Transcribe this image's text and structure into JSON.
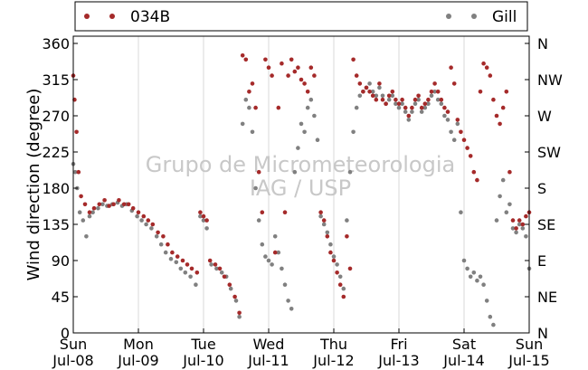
{
  "chart_data": {
    "type": "scatter",
    "title": "",
    "ylabel": "Wind direction (degree)",
    "xlabel": "",
    "ylim": [
      0,
      360
    ],
    "yticks": [
      0,
      45,
      90,
      135,
      180,
      225,
      270,
      315,
      360
    ],
    "right_ticks": [
      {
        "value": 0,
        "label": "N"
      },
      {
        "value": 45,
        "label": "NE"
      },
      {
        "value": 90,
        "label": "E"
      },
      {
        "value": 135,
        "label": "SE"
      },
      {
        "value": 180,
        "label": "S"
      },
      {
        "value": 225,
        "label": "SW"
      },
      {
        "value": 270,
        "label": "W"
      },
      {
        "value": 315,
        "label": "NW"
      },
      {
        "value": 360,
        "label": "N"
      }
    ],
    "xlim": [
      0,
      7
    ],
    "x_unit": "days since 2015-07-08 00:00",
    "xticks": [
      {
        "value": 0,
        "day": "Sun",
        "date": "Jul-08"
      },
      {
        "value": 1,
        "day": "Mon",
        "date": "Jul-09"
      },
      {
        "value": 2,
        "day": "Tue",
        "date": "Jul-10"
      },
      {
        "value": 3,
        "day": "Wed",
        "date": "Jul-11"
      },
      {
        "value": 4,
        "day": "Thu",
        "date": "Jul-12"
      },
      {
        "value": 5,
        "day": "Fri",
        "date": "Jul-13"
      },
      {
        "value": 6,
        "day": "Sat",
        "date": "Jul-14"
      },
      {
        "value": 7,
        "day": "Sun",
        "date": "Jul-15"
      }
    ],
    "grid": "vertical",
    "legend_position": "top-outside",
    "watermark": [
      "Grupo de Micrometeorologia",
      "IAG / USP"
    ],
    "series": [
      {
        "name": "034B",
        "color": "#a52a2a",
        "points": [
          [
            0.0,
            320
          ],
          [
            0.02,
            290
          ],
          [
            0.05,
            250
          ],
          [
            0.08,
            200
          ],
          [
            0.12,
            170
          ],
          [
            0.18,
            160
          ],
          [
            0.25,
            150
          ],
          [
            0.32,
            155
          ],
          [
            0.4,
            160
          ],
          [
            0.48,
            165
          ],
          [
            0.55,
            158
          ],
          [
            0.62,
            160
          ],
          [
            0.7,
            165
          ],
          [
            0.78,
            160
          ],
          [
            0.85,
            160
          ],
          [
            0.92,
            155
          ],
          [
            1.0,
            150
          ],
          [
            1.08,
            145
          ],
          [
            1.15,
            140
          ],
          [
            1.22,
            135
          ],
          [
            1.3,
            125
          ],
          [
            1.38,
            120
          ],
          [
            1.45,
            110
          ],
          [
            1.52,
            100
          ],
          [
            1.6,
            95
          ],
          [
            1.68,
            90
          ],
          [
            1.75,
            85
          ],
          [
            1.82,
            80
          ],
          [
            1.9,
            75
          ],
          [
            1.95,
            150
          ],
          [
            2.0,
            145
          ],
          [
            2.05,
            140
          ],
          [
            2.1,
            90
          ],
          [
            2.18,
            85
          ],
          [
            2.25,
            80
          ],
          [
            2.32,
            70
          ],
          [
            2.4,
            60
          ],
          [
            2.48,
            45
          ],
          [
            2.55,
            25
          ],
          [
            2.6,
            345
          ],
          [
            2.65,
            340
          ],
          [
            2.7,
            300
          ],
          [
            2.75,
            310
          ],
          [
            2.8,
            280
          ],
          [
            2.85,
            200
          ],
          [
            2.9,
            150
          ],
          [
            2.95,
            340
          ],
          [
            3.0,
            330
          ],
          [
            3.05,
            320
          ],
          [
            3.1,
            100
          ],
          [
            3.15,
            280
          ],
          [
            3.2,
            335
          ],
          [
            3.25,
            150
          ],
          [
            3.3,
            320
          ],
          [
            3.35,
            340
          ],
          [
            3.4,
            325
          ],
          [
            3.45,
            330
          ],
          [
            3.5,
            315
          ],
          [
            3.55,
            310
          ],
          [
            3.6,
            300
          ],
          [
            3.65,
            330
          ],
          [
            3.7,
            320
          ],
          [
            3.8,
            150
          ],
          [
            3.85,
            140
          ],
          [
            3.9,
            120
          ],
          [
            3.95,
            100
          ],
          [
            4.0,
            90
          ],
          [
            4.05,
            75
          ],
          [
            4.1,
            60
          ],
          [
            4.15,
            45
          ],
          [
            4.2,
            120
          ],
          [
            4.25,
            80
          ],
          [
            4.3,
            340
          ],
          [
            4.35,
            320
          ],
          [
            4.4,
            310
          ],
          [
            4.45,
            300
          ],
          [
            4.5,
            305
          ],
          [
            4.55,
            300
          ],
          [
            4.6,
            295
          ],
          [
            4.65,
            290
          ],
          [
            4.7,
            310
          ],
          [
            4.75,
            290
          ],
          [
            4.8,
            285
          ],
          [
            4.85,
            295
          ],
          [
            4.9,
            300
          ],
          [
            4.95,
            290
          ],
          [
            5.0,
            285
          ],
          [
            5.05,
            290
          ],
          [
            5.1,
            280
          ],
          [
            5.15,
            270
          ],
          [
            5.2,
            280
          ],
          [
            5.25,
            290
          ],
          [
            5.3,
            295
          ],
          [
            5.35,
            280
          ],
          [
            5.4,
            285
          ],
          [
            5.45,
            290
          ],
          [
            5.5,
            300
          ],
          [
            5.55,
            310
          ],
          [
            5.6,
            300
          ],
          [
            5.65,
            290
          ],
          [
            5.7,
            280
          ],
          [
            5.75,
            275
          ],
          [
            5.8,
            330
          ],
          [
            5.85,
            310
          ],
          [
            5.9,
            265
          ],
          [
            5.95,
            250
          ],
          [
            6.0,
            240
          ],
          [
            6.05,
            230
          ],
          [
            6.1,
            220
          ],
          [
            6.15,
            200
          ],
          [
            6.2,
            190
          ],
          [
            6.25,
            300
          ],
          [
            6.3,
            335
          ],
          [
            6.35,
            330
          ],
          [
            6.4,
            320
          ],
          [
            6.45,
            290
          ],
          [
            6.5,
            270
          ],
          [
            6.55,
            260
          ],
          [
            6.6,
            280
          ],
          [
            6.65,
            300
          ],
          [
            6.7,
            200
          ],
          [
            6.75,
            140
          ],
          [
            6.8,
            130
          ],
          [
            6.85,
            140
          ],
          [
            6.9,
            135
          ],
          [
            6.95,
            145
          ],
          [
            7.0,
            150
          ]
        ]
      },
      {
        "name": "Gill",
        "color": "#808080",
        "points": [
          [
            0.0,
            210
          ],
          [
            0.03,
            200
          ],
          [
            0.06,
            180
          ],
          [
            0.1,
            150
          ],
          [
            0.15,
            140
          ],
          [
            0.2,
            120
          ],
          [
            0.25,
            145
          ],
          [
            0.3,
            150
          ],
          [
            0.38,
            155
          ],
          [
            0.45,
            160
          ],
          [
            0.52,
            158
          ],
          [
            0.6,
            160
          ],
          [
            0.68,
            162
          ],
          [
            0.75,
            158
          ],
          [
            0.82,
            160
          ],
          [
            0.9,
            152
          ],
          [
            0.98,
            145
          ],
          [
            1.05,
            140
          ],
          [
            1.12,
            135
          ],
          [
            1.2,
            130
          ],
          [
            1.28,
            120
          ],
          [
            1.35,
            110
          ],
          [
            1.42,
            100
          ],
          [
            1.5,
            92
          ],
          [
            1.58,
            88
          ],
          [
            1.65,
            80
          ],
          [
            1.72,
            75
          ],
          [
            1.8,
            70
          ],
          [
            1.88,
            60
          ],
          [
            1.95,
            145
          ],
          [
            2.0,
            140
          ],
          [
            2.05,
            130
          ],
          [
            2.12,
            85
          ],
          [
            2.2,
            80
          ],
          [
            2.28,
            75
          ],
          [
            2.35,
            70
          ],
          [
            2.42,
            55
          ],
          [
            2.5,
            40
          ],
          [
            2.55,
            20
          ],
          [
            2.6,
            260
          ],
          [
            2.65,
            290
          ],
          [
            2.7,
            280
          ],
          [
            2.75,
            250
          ],
          [
            2.8,
            180
          ],
          [
            2.85,
            140
          ],
          [
            2.9,
            110
          ],
          [
            2.95,
            95
          ],
          [
            3.0,
            90
          ],
          [
            3.05,
            85
          ],
          [
            3.1,
            120
          ],
          [
            3.15,
            100
          ],
          [
            3.2,
            80
          ],
          [
            3.25,
            60
          ],
          [
            3.3,
            40
          ],
          [
            3.35,
            30
          ],
          [
            3.4,
            200
          ],
          [
            3.45,
            230
          ],
          [
            3.5,
            260
          ],
          [
            3.55,
            250
          ],
          [
            3.6,
            280
          ],
          [
            3.65,
            290
          ],
          [
            3.7,
            270
          ],
          [
            3.75,
            240
          ],
          [
            3.8,
            145
          ],
          [
            3.85,
            135
          ],
          [
            3.9,
            125
          ],
          [
            3.95,
            110
          ],
          [
            4.0,
            95
          ],
          [
            4.05,
            85
          ],
          [
            4.1,
            70
          ],
          [
            4.15,
            55
          ],
          [
            4.2,
            140
          ],
          [
            4.25,
            200
          ],
          [
            4.3,
            250
          ],
          [
            4.35,
            280
          ],
          [
            4.4,
            295
          ],
          [
            4.45,
            300
          ],
          [
            4.5,
            305
          ],
          [
            4.55,
            310
          ],
          [
            4.6,
            300
          ],
          [
            4.65,
            295
          ],
          [
            4.7,
            305
          ],
          [
            4.75,
            295
          ],
          [
            4.8,
            285
          ],
          [
            4.85,
            290
          ],
          [
            4.9,
            295
          ],
          [
            4.95,
            285
          ],
          [
            5.0,
            280
          ],
          [
            5.05,
            285
          ],
          [
            5.1,
            275
          ],
          [
            5.15,
            265
          ],
          [
            5.2,
            275
          ],
          [
            5.25,
            285
          ],
          [
            5.3,
            290
          ],
          [
            5.35,
            275
          ],
          [
            5.4,
            280
          ],
          [
            5.45,
            285
          ],
          [
            5.5,
            295
          ],
          [
            5.55,
            300
          ],
          [
            5.6,
            290
          ],
          [
            5.65,
            285
          ],
          [
            5.7,
            270
          ],
          [
            5.75,
            265
          ],
          [
            5.8,
            250
          ],
          [
            5.85,
            240
          ],
          [
            5.9,
            260
          ],
          [
            5.95,
            150
          ],
          [
            6.0,
            90
          ],
          [
            6.05,
            80
          ],
          [
            6.1,
            70
          ],
          [
            6.15,
            75
          ],
          [
            6.2,
            65
          ],
          [
            6.25,
            70
          ],
          [
            6.3,
            60
          ],
          [
            6.35,
            40
          ],
          [
            6.4,
            20
          ],
          [
            6.45,
            10
          ],
          [
            6.5,
            140
          ],
          [
            6.55,
            170
          ],
          [
            6.6,
            190
          ],
          [
            6.65,
            150
          ],
          [
            6.7,
            160
          ],
          [
            6.75,
            130
          ],
          [
            6.8,
            125
          ],
          [
            6.85,
            135
          ],
          [
            6.9,
            130
          ],
          [
            6.95,
            120
          ],
          [
            7.0,
            80
          ]
        ]
      }
    ]
  }
}
